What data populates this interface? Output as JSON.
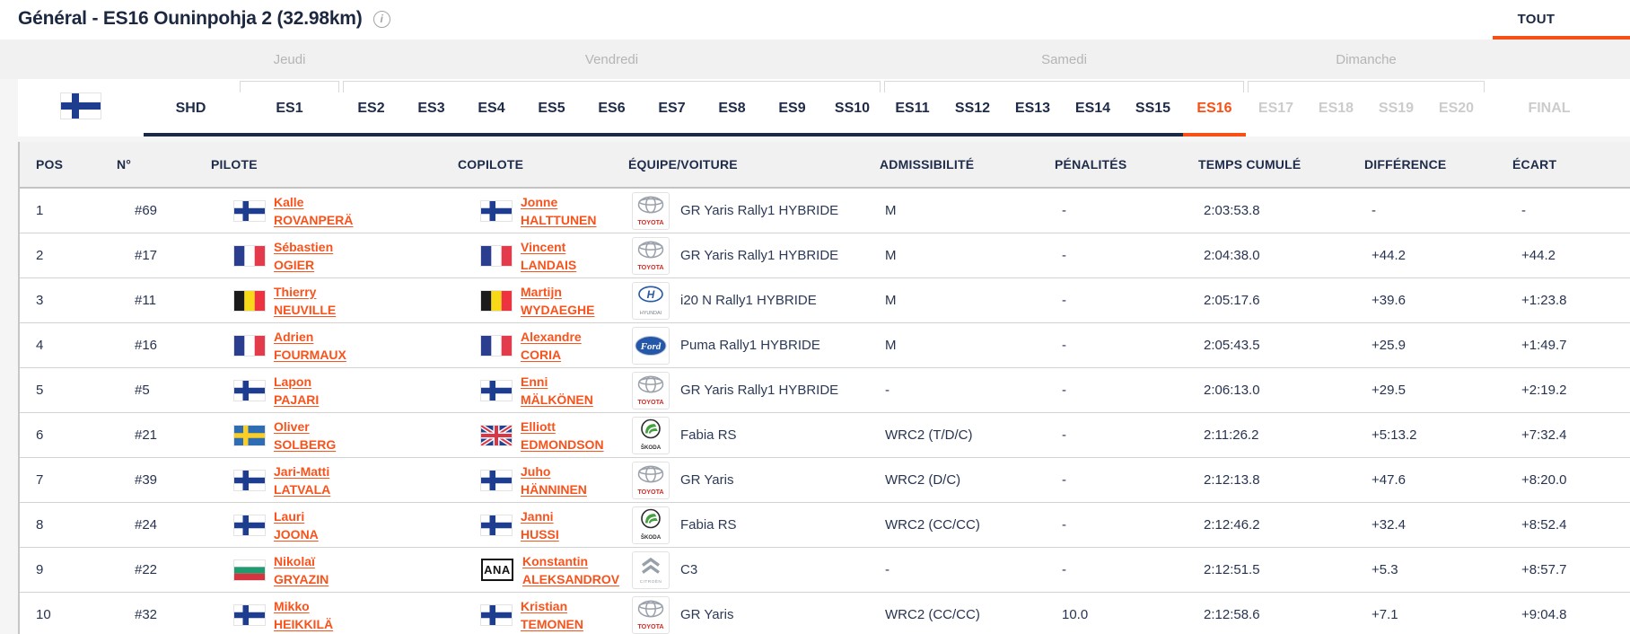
{
  "header": {
    "title": "Général - ES16 Ouninpohja 2 (32.98km)",
    "all_tab": "TOUT"
  },
  "colors": {
    "accent_orange": "#f84f14",
    "navy": "#1e2b49",
    "disabled_tab_gray": "#cccccc",
    "day_label_gray": "#b5b5b5",
    "header_bg": "#f1f1f1"
  },
  "days": [
    "Jeudi",
    "Vendredi",
    "Samedi",
    "Dimanche"
  ],
  "tabs": {
    "rally_flag": "finland-flag",
    "stages": [
      {
        "label": "SHD",
        "state": "default"
      },
      {
        "label": "ES1",
        "state": "default"
      },
      {
        "label": "ES2",
        "state": "default"
      },
      {
        "label": "ES3",
        "state": "default"
      },
      {
        "label": "ES4",
        "state": "default"
      },
      {
        "label": "ES5",
        "state": "default"
      },
      {
        "label": "ES6",
        "state": "default"
      },
      {
        "label": "ES7",
        "state": "default"
      },
      {
        "label": "ES8",
        "state": "default"
      },
      {
        "label": "ES9",
        "state": "default"
      },
      {
        "label": "SS10",
        "state": "default"
      },
      {
        "label": "ES11",
        "state": "default"
      },
      {
        "label": "SS12",
        "state": "default"
      },
      {
        "label": "ES13",
        "state": "default"
      },
      {
        "label": "ES14",
        "state": "default"
      },
      {
        "label": "SS15",
        "state": "default"
      },
      {
        "label": "ES16",
        "state": "active"
      },
      {
        "label": "ES17",
        "state": "disabled"
      },
      {
        "label": "ES18",
        "state": "disabled"
      },
      {
        "label": "SS19",
        "state": "disabled"
      },
      {
        "label": "ES20",
        "state": "disabled"
      },
      {
        "label": "FINAL",
        "state": "disabled"
      }
    ]
  },
  "misc": {
    "ana_label": "ANA",
    "logo_words": {
      "toyota": "TOYOTA",
      "hyundai": "HYUNDAI",
      "skoda": "ŠKODA",
      "citroen": "CITROËN",
      "ford": "Ford"
    }
  },
  "table": {
    "columns": [
      "POS",
      "N°",
      "PILOTE",
      "COPILOTE",
      "ÉQUIPE/VOITURE",
      "ADMISSIBILITÉ",
      "PÉNALITÉS",
      "TEMPS CUMULÉ",
      "DIFFÉRENCE",
      "ÉCART"
    ],
    "rows": [
      {
        "pos": "1",
        "num": "#69",
        "pilot": {
          "first": "Kalle",
          "last": "ROVANPERÄ",
          "flag": "fi"
        },
        "copilot": {
          "first": "Jonne",
          "last": "HALTTUNEN",
          "flag": "fi"
        },
        "car": {
          "make": "toyota",
          "model": "GR Yaris Rally1 HYBRIDE"
        },
        "eligibility": "M",
        "penalties": "-",
        "time": "2:03:53.8",
        "difference": "-",
        "gap": "-"
      },
      {
        "pos": "2",
        "num": "#17",
        "pilot": {
          "first": "Sébastien",
          "last": "OGIER",
          "flag": "fr"
        },
        "copilot": {
          "first": "Vincent",
          "last": "LANDAIS",
          "flag": "fr"
        },
        "car": {
          "make": "toyota",
          "model": "GR Yaris Rally1 HYBRIDE"
        },
        "eligibility": "M",
        "penalties": "-",
        "time": "2:04:38.0",
        "difference": "+44.2",
        "gap": "+44.2"
      },
      {
        "pos": "3",
        "num": "#11",
        "pilot": {
          "first": "Thierry",
          "last": "NEUVILLE",
          "flag": "be"
        },
        "copilot": {
          "first": "Martijn",
          "last": "WYDAEGHE",
          "flag": "be"
        },
        "car": {
          "make": "hyundai",
          "model": "i20 N Rally1 HYBRIDE"
        },
        "eligibility": "M",
        "penalties": "-",
        "time": "2:05:17.6",
        "difference": "+39.6",
        "gap": "+1:23.8"
      },
      {
        "pos": "4",
        "num": "#16",
        "pilot": {
          "first": "Adrien",
          "last": "FOURMAUX",
          "flag": "fr"
        },
        "copilot": {
          "first": "Alexandre",
          "last": "CORIA",
          "flag": "fr"
        },
        "car": {
          "make": "ford",
          "model": "Puma Rally1 HYBRIDE"
        },
        "eligibility": "M",
        "penalties": "-",
        "time": "2:05:43.5",
        "difference": "+25.9",
        "gap": "+1:49.7"
      },
      {
        "pos": "5",
        "num": "#5",
        "pilot": {
          "first": "Lapon",
          "last": "PAJARI",
          "flag": "fi"
        },
        "copilot": {
          "first": "Enni",
          "last": "MÄLKÖNEN",
          "flag": "fi"
        },
        "car": {
          "make": "toyota",
          "model": "GR Yaris Rally1 HYBRIDE"
        },
        "eligibility": "-",
        "penalties": "-",
        "time": "2:06:13.0",
        "difference": "+29.5",
        "gap": "+2:19.2"
      },
      {
        "pos": "6",
        "num": "#21",
        "pilot": {
          "first": "Oliver",
          "last": "SOLBERG",
          "flag": "se"
        },
        "copilot": {
          "first": "Elliott",
          "last": "EDMONDSON",
          "flag": "gb"
        },
        "car": {
          "make": "skoda",
          "model": "Fabia RS"
        },
        "eligibility": "WRC2 (T/D/C)",
        "penalties": "-",
        "time": "2:11:26.2",
        "difference": "+5:13.2",
        "gap": "+7:32.4"
      },
      {
        "pos": "7",
        "num": "#39",
        "pilot": {
          "first": "Jari-Matti",
          "last": "LATVALA",
          "flag": "fi"
        },
        "copilot": {
          "first": "Juho",
          "last": "HÄNNINEN",
          "flag": "fi"
        },
        "car": {
          "make": "toyota",
          "model": "GR Yaris"
        },
        "eligibility": "WRC2 (D/C)",
        "penalties": "-",
        "time": "2:12:13.8",
        "difference": "+47.6",
        "gap": "+8:20.0"
      },
      {
        "pos": "8",
        "num": "#24",
        "pilot": {
          "first": "Lauri",
          "last": "JOONA",
          "flag": "fi"
        },
        "copilot": {
          "first": "Janni",
          "last": "HUSSI",
          "flag": "fi"
        },
        "car": {
          "make": "skoda",
          "model": "Fabia RS"
        },
        "eligibility": "WRC2 (CC/CC)",
        "penalties": "-",
        "time": "2:12:46.2",
        "difference": "+32.4",
        "gap": "+8:52.4"
      },
      {
        "pos": "9",
        "num": "#22",
        "pilot": {
          "first": "Nikolaï",
          "last": "GRYAZIN",
          "flag": "bg"
        },
        "copilot": {
          "first": "Konstantin",
          "last": "ALEKSANDROV",
          "flag": "ana"
        },
        "car": {
          "make": "citroen",
          "model": "C3"
        },
        "eligibility": "-",
        "penalties": "-",
        "time": "2:12:51.5",
        "difference": "+5.3",
        "gap": "+8:57.7"
      },
      {
        "pos": "10",
        "num": "#32",
        "pilot": {
          "first": "Mikko",
          "last": "HEIKKILÄ",
          "flag": "fi"
        },
        "copilot": {
          "first": "Kristian",
          "last": "TEMONEN",
          "flag": "fi"
        },
        "car": {
          "make": "toyota",
          "model": "GR Yaris"
        },
        "eligibility": "WRC2 (CC/CC)",
        "penalties": "10.0",
        "time": "2:12:58.6",
        "difference": "+7.1",
        "gap": "+9:04.8"
      }
    ]
  }
}
